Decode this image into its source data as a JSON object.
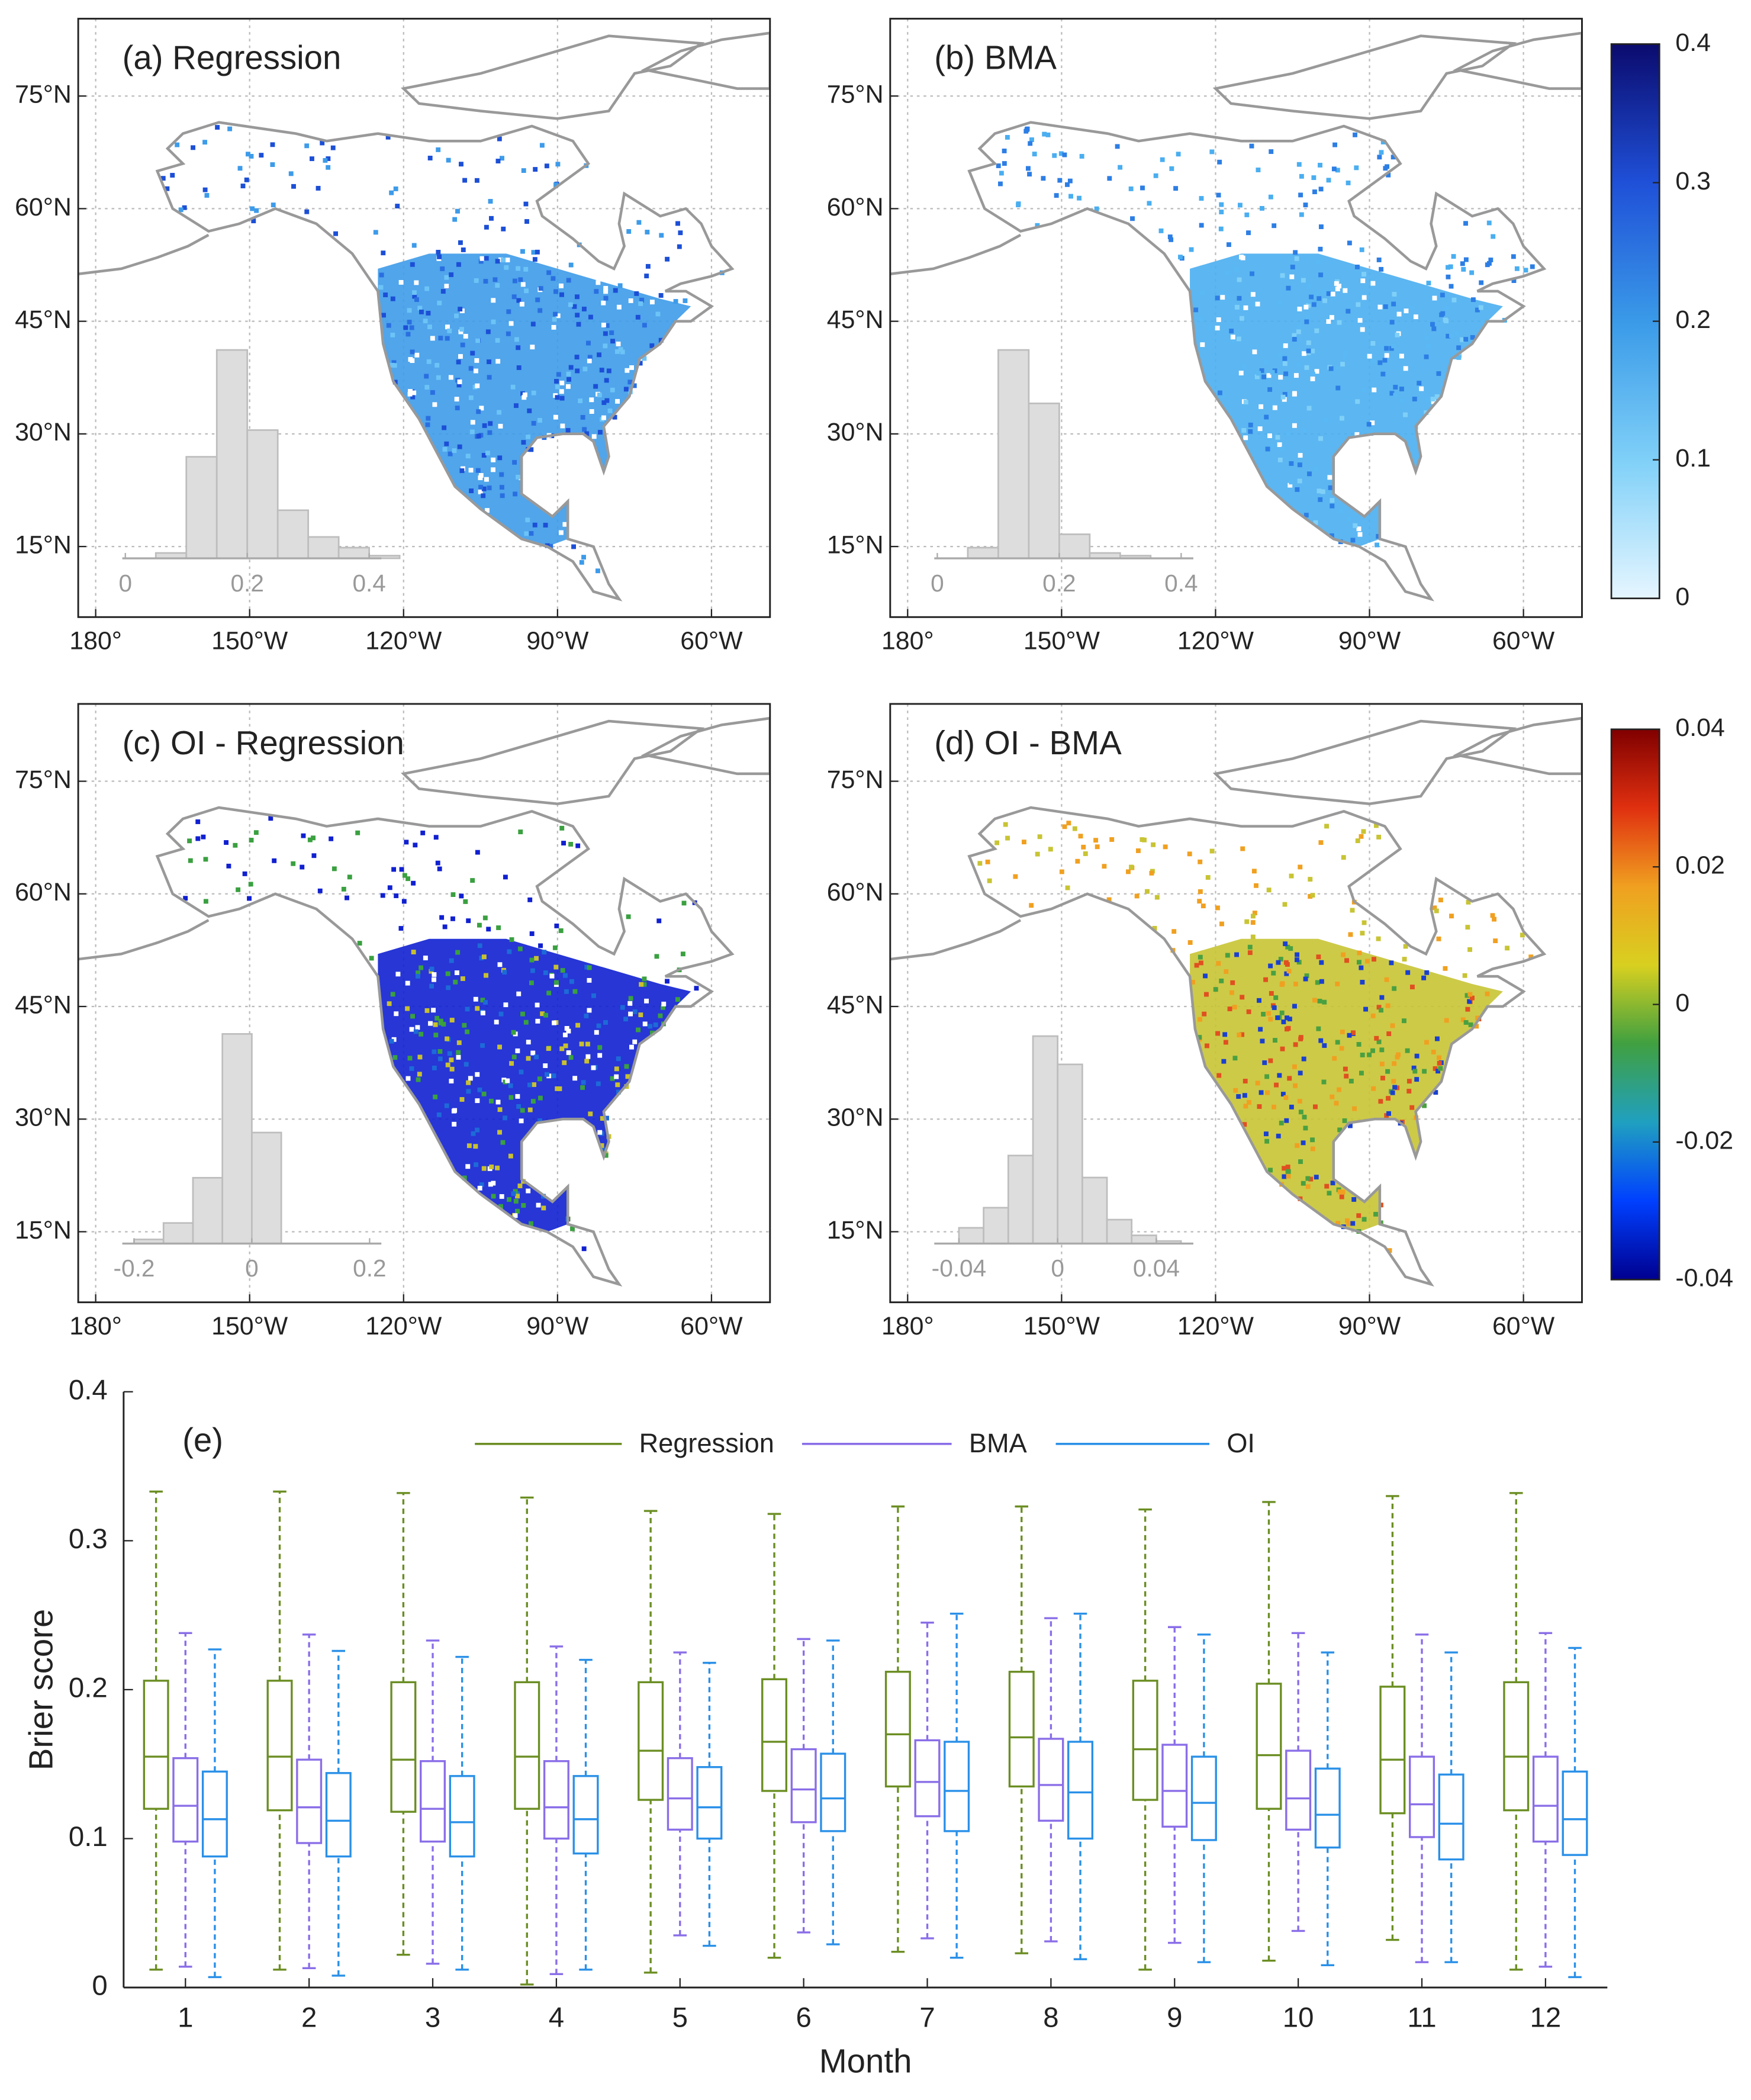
{
  "chart_data": [
    {
      "type": "map",
      "title": "(a) Regression",
      "color": "#3d9be9",
      "xlim": [
        -183.4,
        -48.6
      ],
      "ylim": [
        5.6,
        85.3
      ],
      "xticks": [
        {
          "value": -180,
          "label": "180°"
        },
        {
          "value": -150,
          "label": "150°W"
        },
        {
          "value": -120,
          "label": "120°W"
        },
        {
          "value": -90,
          "label": "90°W"
        },
        {
          "value": -60,
          "label": "60°W"
        }
      ],
      "yticks": [
        {
          "value": 15,
          "label": "15°N"
        },
        {
          "value": 30,
          "label": "30°N"
        },
        {
          "value": 45,
          "label": "45°N"
        },
        {
          "value": 60,
          "label": "60°N"
        },
        {
          "value": 75,
          "label": "75°N"
        }
      ],
      "grid": true,
      "inset": {
        "type": "histogram",
        "color": "#dddddd",
        "bins": [
          0.05,
          0.1,
          0.15,
          0.2,
          0.25,
          0.3,
          0.35,
          0.4,
          0.45
        ],
        "counts": [
          1,
          19,
          39,
          24,
          9,
          4,
          2,
          0.5
        ],
        "xlim": [
          -0.005,
          0.42
        ],
        "ylim": [
          0,
          40
        ],
        "xticks": [
          0,
          0.2,
          0.4
        ]
      }
    },
    {
      "type": "map",
      "title": "(b) BMA",
      "color": "#4aaef0",
      "xlim": [
        -183.4,
        -48.6
      ],
      "ylim": [
        5.6,
        85.3
      ],
      "xticks": [
        {
          "value": -180,
          "label": "180°"
        },
        {
          "value": -150,
          "label": "150°W"
        },
        {
          "value": -120,
          "label": "120°W"
        },
        {
          "value": -90,
          "label": "90°W"
        },
        {
          "value": -60,
          "label": "60°W"
        }
      ],
      "yticks": [
        {
          "value": 15,
          "label": "15°N"
        },
        {
          "value": 30,
          "label": "30°N"
        },
        {
          "value": 45,
          "label": "45°N"
        },
        {
          "value": 60,
          "label": "60°N"
        },
        {
          "value": 75,
          "label": "75°N"
        }
      ],
      "grid": true,
      "inset": {
        "type": "histogram",
        "color": "#dddddd",
        "bins": [
          0.05,
          0.1,
          0.15,
          0.2,
          0.25,
          0.3,
          0.35
        ],
        "counts": [
          2,
          39,
          29,
          4.5,
          1,
          0.5
        ],
        "xlim": [
          -0.005,
          0.42
        ],
        "ylim": [
          0,
          40
        ],
        "xticks": [
          0,
          0.2,
          0.4
        ]
      },
      "colorbar": {
        "lim": [
          0,
          0.4
        ],
        "ticks": [
          0,
          0.1,
          0.2,
          0.3,
          0.4
        ],
        "colors": [
          "#e6f6ff",
          "#7fd0f8",
          "#3a9ae8",
          "#1f50d8",
          "#0b0b6e"
        ]
      }
    },
    {
      "type": "map",
      "title": "(c) OI - Regression",
      "color": "#1020d0",
      "xlim": [
        -183.4,
        -48.6
      ],
      "ylim": [
        5.6,
        85.3
      ],
      "xticks": [
        {
          "value": -180,
          "label": "180°"
        },
        {
          "value": -150,
          "label": "150°W"
        },
        {
          "value": -120,
          "label": "120°W"
        },
        {
          "value": -90,
          "label": "90°W"
        },
        {
          "value": -60,
          "label": "60°W"
        }
      ],
      "yticks": [
        {
          "value": 15,
          "label": "15°N"
        },
        {
          "value": 30,
          "label": "30°N"
        },
        {
          "value": 45,
          "label": "45°N"
        },
        {
          "value": 60,
          "label": "60°N"
        },
        {
          "value": 75,
          "label": "75°N"
        }
      ],
      "grid": true,
      "inset": {
        "type": "histogram",
        "color": "#dddddd",
        "bins": [
          -0.2,
          -0.15,
          -0.1,
          -0.05,
          0,
          0.05
        ],
        "counts": [
          1,
          5,
          16,
          51,
          27
        ],
        "xlim": [
          -0.22,
          0.22
        ],
        "ylim": [
          0,
          52
        ],
        "xticks": [
          -0.2,
          0,
          0.2
        ]
      }
    },
    {
      "type": "map",
      "title": "(d) OI - BMA",
      "color": "#c8c434",
      "xlim": [
        -183.4,
        -48.6
      ],
      "ylim": [
        5.6,
        85.3
      ],
      "xticks": [
        {
          "value": -180,
          "label": "180°"
        },
        {
          "value": -150,
          "label": "150°W"
        },
        {
          "value": -120,
          "label": "120°W"
        },
        {
          "value": -90,
          "label": "90°W"
        },
        {
          "value": -60,
          "label": "60°W"
        }
      ],
      "yticks": [
        {
          "value": 15,
          "label": "15°N"
        },
        {
          "value": 30,
          "label": "30°N"
        },
        {
          "value": 45,
          "label": "45°N"
        },
        {
          "value": 60,
          "label": "60°N"
        },
        {
          "value": 75,
          "label": "75°N"
        }
      ],
      "grid": true,
      "inset": {
        "type": "histogram",
        "color": "#dddddd",
        "bins": [
          -0.04,
          -0.03,
          -0.02,
          -0.01,
          0,
          0.01,
          0.02,
          0.03,
          0.04,
          0.05
        ],
        "counts": [
          2.5,
          5.7,
          14,
          33,
          28.5,
          10.5,
          3.8,
          1.3,
          0.4
        ],
        "xlim": [
          -0.05,
          0.055
        ],
        "ylim": [
          0,
          34
        ],
        "xticks": [
          -0.04,
          0,
          0.04
        ]
      },
      "colorbar": {
        "lim": [
          -0.04,
          0.04
        ],
        "ticks": [
          -0.04,
          -0.02,
          0,
          0.02,
          0.04
        ],
        "colors": [
          "#00008f",
          "#0040ff",
          "#20a0c0",
          "#40a040",
          "#d8d020",
          "#f0a020",
          "#e03010",
          "#800000"
        ]
      }
    },
    {
      "type": "box",
      "label": "(e)",
      "ylabel": "Brier score",
      "xlabel": "Month",
      "categories": [
        1,
        2,
        3,
        4,
        5,
        6,
        7,
        8,
        9,
        10,
        11,
        12
      ],
      "ylim": [
        0,
        0.4
      ],
      "yticks": [
        0,
        0.1,
        0.2,
        0.3,
        0.4
      ],
      "series": [
        {
          "name": "Regression",
          "color": "#6b8e23",
          "whisker_low": [
            0.012,
            0.012,
            0.022,
            0.002,
            0.01,
            0.02,
            0.024,
            0.023,
            0.012,
            0.018,
            0.032,
            0.012
          ],
          "q1": [
            0.12,
            0.119,
            0.118,
            0.12,
            0.126,
            0.132,
            0.135,
            0.135,
            0.126,
            0.12,
            0.117,
            0.119
          ],
          "median": [
            0.155,
            0.155,
            0.153,
            0.155,
            0.159,
            0.165,
            0.17,
            0.168,
            0.16,
            0.156,
            0.153,
            0.155
          ],
          "q3": [
            0.206,
            0.206,
            0.205,
            0.205,
            0.205,
            0.207,
            0.212,
            0.212,
            0.206,
            0.204,
            0.202,
            0.205
          ],
          "whisker_high": [
            0.333,
            0.333,
            0.332,
            0.329,
            0.32,
            0.318,
            0.323,
            0.323,
            0.321,
            0.326,
            0.33,
            0.332
          ]
        },
        {
          "name": "BMA",
          "color": "#8a6ee8",
          "whisker_low": [
            0.014,
            0.013,
            0.016,
            0.009,
            0.035,
            0.037,
            0.033,
            0.031,
            0.03,
            0.038,
            0.017,
            0.014
          ],
          "q1": [
            0.098,
            0.097,
            0.098,
            0.1,
            0.106,
            0.111,
            0.115,
            0.112,
            0.108,
            0.106,
            0.101,
            0.098
          ],
          "median": [
            0.122,
            0.121,
            0.12,
            0.121,
            0.127,
            0.133,
            0.138,
            0.136,
            0.132,
            0.127,
            0.123,
            0.122
          ],
          "q3": [
            0.154,
            0.153,
            0.152,
            0.152,
            0.154,
            0.16,
            0.166,
            0.167,
            0.163,
            0.159,
            0.155,
            0.155
          ],
          "whisker_high": [
            0.238,
            0.237,
            0.233,
            0.229,
            0.225,
            0.234,
            0.245,
            0.248,
            0.242,
            0.238,
            0.237,
            0.238
          ]
        },
        {
          "name": "OI",
          "color": "#2a90e8",
          "whisker_low": [
            0.007,
            0.008,
            0.012,
            0.012,
            0.028,
            0.029,
            0.02,
            0.019,
            0.017,
            0.015,
            0.017,
            0.007
          ],
          "q1": [
            0.088,
            0.088,
            0.088,
            0.09,
            0.1,
            0.105,
            0.105,
            0.1,
            0.099,
            0.094,
            0.086,
            0.089
          ],
          "median": [
            0.113,
            0.112,
            0.111,
            0.113,
            0.121,
            0.127,
            0.132,
            0.131,
            0.124,
            0.116,
            0.11,
            0.113
          ],
          "q3": [
            0.145,
            0.144,
            0.142,
            0.142,
            0.148,
            0.157,
            0.165,
            0.165,
            0.155,
            0.147,
            0.143,
            0.145
          ],
          "whisker_high": [
            0.227,
            0.226,
            0.222,
            0.22,
            0.218,
            0.233,
            0.251,
            0.251,
            0.237,
            0.225,
            0.225,
            0.228
          ]
        }
      ]
    }
  ]
}
